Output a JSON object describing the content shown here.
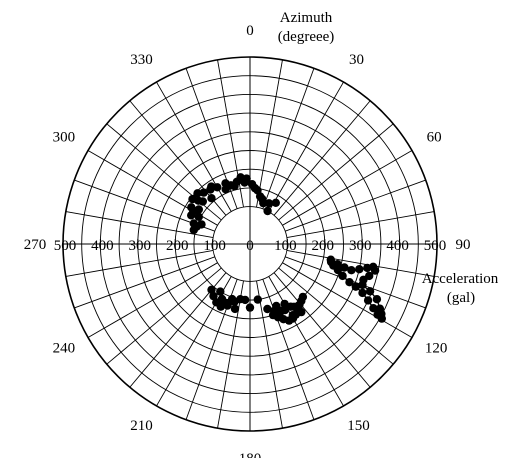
{
  "chart_data": {
    "type": "scatter",
    "coordinate_system": "polar",
    "angle_direction": "clockwise",
    "angle_zero": "top",
    "angle_title": [
      "Azimuth",
      "(degreee)"
    ],
    "radial_title": [
      "Acceleration",
      "(gal)"
    ],
    "azimuth_ticks": [
      0,
      30,
      60,
      90,
      120,
      150,
      180,
      210,
      240,
      270,
      300,
      330
    ],
    "radial_tick_labels_right": [
      "0",
      "100",
      "200",
      "300",
      "400",
      "500"
    ],
    "radial_tick_labels_left": [
      "500",
      "400",
      "300",
      "200",
      "100",
      "0"
    ],
    "radial_range": [
      0,
      500
    ],
    "radial_grid_inner": 100,
    "radial_grid_step": 50,
    "angular_grid_step_deg": 10,
    "grid": true,
    "marker_color": "#000000",
    "line_color": "#000000",
    "clusters": [
      {
        "name": "",
        "connected": true,
        "points": [
          {
            "azimuth": 101.0,
            "acc": 220
          },
          {
            "azimuth": 103.0,
            "acc": 240
          },
          {
            "azimuth": 104.0,
            "acc": 260
          },
          {
            "azimuth": 104.5,
            "acc": 280
          },
          {
            "azimuth": 103.0,
            "acc": 300
          },
          {
            "azimuth": 101.5,
            "acc": 320
          },
          {
            "azimuth": 100.5,
            "acc": 335
          },
          {
            "azimuth": 102.0,
            "acc": 342
          },
          {
            "azimuth": 105.0,
            "acc": 330
          },
          {
            "azimuth": 107.5,
            "acc": 318
          },
          {
            "azimuth": 110.0,
            "acc": 320
          },
          {
            "azimuth": 111.5,
            "acc": 345
          },
          {
            "azimuth": 113.5,
            "acc": 370
          },
          {
            "azimuth": 116.5,
            "acc": 388
          },
          {
            "azimuth": 118.0,
            "acc": 398
          },
          {
            "azimuth": 119.5,
            "acc": 405
          },
          {
            "azimuth": 119.0,
            "acc": 390
          },
          {
            "azimuth": 117.5,
            "acc": 372
          },
          {
            "azimuth": 115.5,
            "acc": 350
          },
          {
            "azimuth": 113.5,
            "acc": 328
          },
          {
            "azimuth": 112.0,
            "acc": 305
          },
          {
            "azimuth": 111.0,
            "acc": 285
          },
          {
            "azimuth": 109.0,
            "acc": 262
          },
          {
            "azimuth": 106.5,
            "acc": 245
          },
          {
            "azimuth": 104.5,
            "acc": 230
          },
          {
            "azimuth": 102.5,
            "acc": 222
          }
        ]
      },
      {
        "name": "",
        "connected": false,
        "points": [
          {
            "azimuth": 135,
            "acc": 200
          },
          {
            "azimuth": 138,
            "acc": 205
          },
          {
            "azimuth": 141,
            "acc": 210
          },
          {
            "azimuth": 144,
            "acc": 215
          },
          {
            "azimuth": 147,
            "acc": 225
          },
          {
            "azimuth": 150,
            "acc": 230
          },
          {
            "azimuth": 153,
            "acc": 230
          },
          {
            "azimuth": 156,
            "acc": 220
          },
          {
            "azimuth": 159,
            "acc": 210
          },
          {
            "azimuth": 152,
            "acc": 200
          },
          {
            "azimuth": 155,
            "acc": 198
          },
          {
            "azimuth": 160,
            "acc": 190
          },
          {
            "azimuth": 158,
            "acc": 210
          },
          {
            "azimuth": 149,
            "acc": 222
          },
          {
            "azimuth": 145,
            "acc": 205
          },
          {
            "azimuth": 162,
            "acc": 200
          },
          {
            "azimuth": 165,
            "acc": 180
          },
          {
            "azimuth": 157,
            "acc": 180
          },
          {
            "azimuth": 150,
            "acc": 185
          },
          {
            "azimuth": 147,
            "acc": 200
          },
          {
            "azimuth": 156,
            "acc": 195
          },
          {
            "azimuth": 143,
            "acc": 228
          }
        ]
      },
      {
        "name": "",
        "connected": false,
        "points": [
          {
            "azimuth": 190,
            "acc": 150
          },
          {
            "azimuth": 195,
            "acc": 160
          },
          {
            "azimuth": 200,
            "acc": 175
          },
          {
            "azimuth": 205,
            "acc": 185
          },
          {
            "azimuth": 210,
            "acc": 180
          },
          {
            "azimuth": 215,
            "acc": 170
          },
          {
            "azimuth": 207,
            "acc": 165
          },
          {
            "azimuth": 198,
            "acc": 155
          },
          {
            "azimuth": 185,
            "acc": 150
          },
          {
            "azimuth": 172,
            "acc": 150
          },
          {
            "azimuth": 220,
            "acc": 160
          },
          {
            "azimuth": 212,
            "acc": 150
          },
          {
            "azimuth": 202,
            "acc": 170
          },
          {
            "azimuth": 193,
            "acc": 178
          },
          {
            "azimuth": 180,
            "acc": 170
          }
        ]
      },
      {
        "name": "",
        "connected": false,
        "points": [
          {
            "azimuth": 290,
            "acc": 160
          },
          {
            "azimuth": 296,
            "acc": 175
          },
          {
            "azimuth": 302,
            "acc": 185
          },
          {
            "azimuth": 308,
            "acc": 195
          },
          {
            "azimuth": 314,
            "acc": 195
          },
          {
            "azimuth": 318,
            "acc": 185
          },
          {
            "azimuth": 324,
            "acc": 180
          },
          {
            "azimuth": 330,
            "acc": 175
          },
          {
            "azimuth": 336,
            "acc": 160
          },
          {
            "azimuth": 342,
            "acc": 165
          },
          {
            "azimuth": 348,
            "acc": 170
          },
          {
            "azimuth": 352,
            "acc": 180
          },
          {
            "azimuth": 357,
            "acc": 175
          },
          {
            "azimuth": 2,
            "acc": 160
          },
          {
            "azimuth": 8,
            "acc": 145
          },
          {
            "azimuth": 12,
            "acc": 130
          },
          {
            "azimuth": 18,
            "acc": 115
          },
          {
            "azimuth": 25,
            "acc": 120
          },
          {
            "azimuth": 32,
            "acc": 130
          },
          {
            "azimuth": 320,
            "acc": 160
          },
          {
            "azimuth": 312,
            "acc": 170
          },
          {
            "azimuth": 304,
            "acc": 165
          },
          {
            "azimuth": 298,
            "acc": 155
          },
          {
            "azimuth": 292,
            "acc": 140
          },
          {
            "azimuth": 288,
            "acc": 150
          },
          {
            "azimuth": 284,
            "acc": 155
          },
          {
            "azimuth": 300,
            "acc": 175
          },
          {
            "azimuth": 310,
            "acc": 180
          },
          {
            "azimuth": 326,
            "acc": 185
          },
          {
            "azimuth": 338,
            "acc": 175
          },
          {
            "azimuth": 345,
            "acc": 160
          },
          {
            "azimuth": 355,
            "acc": 165
          },
          {
            "azimuth": 5,
            "acc": 150
          },
          {
            "azimuth": 15,
            "acc": 125
          },
          {
            "azimuth": 28,
            "acc": 100
          }
        ]
      }
    ]
  }
}
